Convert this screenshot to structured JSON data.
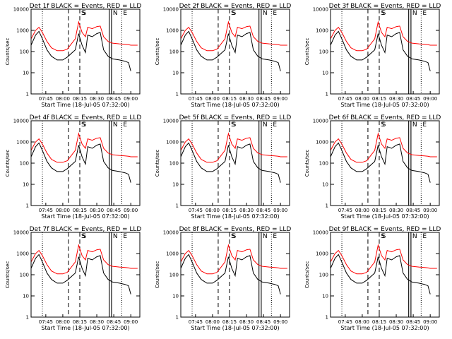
{
  "figure": {
    "panels": [
      {
        "title": "Det 1f BLACK = Events, RED = LLD",
        "ylabel": "Counts/sec",
        "xlabel": "Start Time (18-Jul-05 07:32:00)"
      },
      {
        "title": "Det 2f BLACK = Events, RED = LLD",
        "ylabel": "Counts/sec",
        "xlabel": "Start Time (18-Jul-05 07:32:00)"
      },
      {
        "title": "Det 3f BLACK = Events, RED = LLD",
        "ylabel": "Counts/sec",
        "xlabel": "Start Time (18-Jul-05 07:32:00)"
      },
      {
        "title": "Det 4f BLACK = Events, RED = LLD",
        "ylabel": "Counts/sec",
        "xlabel": "Start Time (18-Jul-05 07:32:00)"
      },
      {
        "title": "Det 5f BLACK = Events, RED = LLD",
        "ylabel": "Counts/sec",
        "xlabel": "Start Time (18-Jul-05 07:32:00)"
      },
      {
        "title": "Det 6f BLACK = Events, RED = LLD",
        "ylabel": "Counts/sec",
        "xlabel": "Start Time (18-Jul-05 07:32:00)"
      },
      {
        "title": "Det 7f BLACK = Events, RED = LLD",
        "ylabel": "Counts/sec",
        "xlabel": "Start Time (18-Jul-05 07:32:00)"
      },
      {
        "title": "Det 8f BLACK = Events, RED = LLD",
        "ylabel": "Counts/sec",
        "xlabel": "Start Time (18-Jul-05 07:32:00)"
      },
      {
        "title": "Det 9f BLACK = Events, RED = LLD",
        "ylabel": "Counts/sec",
        "xlabel": "Start Time (18-Jul-05 07:32:00)"
      }
    ],
    "colors": {
      "events": "#000000",
      "lld": "#ff0000",
      "axes": "#000000"
    }
  },
  "chart_data": {
    "type": "line",
    "layout": "3x3 grid",
    "x_unit": "time (UT, 18-Jul-05)",
    "x_range": [
      "07:32",
      "09:08"
    ],
    "x_ticks": [
      "07:45",
      "08:00",
      "08:15",
      "08:30",
      "08:45",
      "09:00"
    ],
    "y_scale": "log",
    "y_range": [
      1,
      10000
    ],
    "y_ticks": [
      "1",
      "10",
      "100",
      "1000",
      "10000"
    ],
    "series_colors": {
      "Events": "#000000",
      "LLD": "#ff0000"
    },
    "markers": [
      {
        "time": "07:42",
        "style": "dotted",
        "label": ""
      },
      {
        "time": "08:05",
        "style": "dashed",
        "label": ""
      },
      {
        "time": "08:15",
        "style": "dashed",
        "label": "S"
      },
      {
        "time": "08:16",
        "style": "none",
        "label": "S"
      },
      {
        "time": "08:41",
        "style": "solid",
        "label": ""
      },
      {
        "time": "08:43",
        "style": "solid",
        "label": "N"
      },
      {
        "time": "08:52",
        "style": "dotted",
        "label": "E"
      }
    ],
    "series": [
      {
        "name": "Events",
        "time": [
          "07:32",
          "07:36",
          "07:39",
          "07:42",
          "07:46",
          "07:50",
          "07:55",
          "08:00",
          "08:04",
          "08:11",
          "08:14",
          "08:17",
          "08:20",
          "08:22",
          "08:26",
          "08:30",
          "08:33",
          "08:36",
          "08:40",
          "08:44",
          "08:50",
          "08:55",
          "08:58",
          "09:00"
        ],
        "values": [
          200,
          600,
          900,
          400,
          120,
          60,
          40,
          40,
          55,
          120,
          700,
          200,
          90,
          600,
          500,
          700,
          800,
          120,
          60,
          45,
          40,
          35,
          30,
          12
        ]
      },
      {
        "name": "LLD",
        "time": [
          "07:32",
          "07:36",
          "07:39",
          "07:42",
          "07:46",
          "07:50",
          "07:55",
          "08:00",
          "08:04",
          "08:11",
          "08:14",
          "08:17",
          "08:20",
          "08:22",
          "08:26",
          "08:30",
          "08:33",
          "08:36",
          "08:40",
          "08:44",
          "08:50",
          "08:55",
          "08:58",
          "09:00",
          "09:06"
        ],
        "values": [
          400,
          1000,
          1400,
          800,
          300,
          150,
          110,
          110,
          130,
          400,
          2500,
          800,
          500,
          1400,
          1200,
          1500,
          1600,
          500,
          300,
          250,
          230,
          220,
          210,
          200,
          200
        ]
      }
    ]
  }
}
